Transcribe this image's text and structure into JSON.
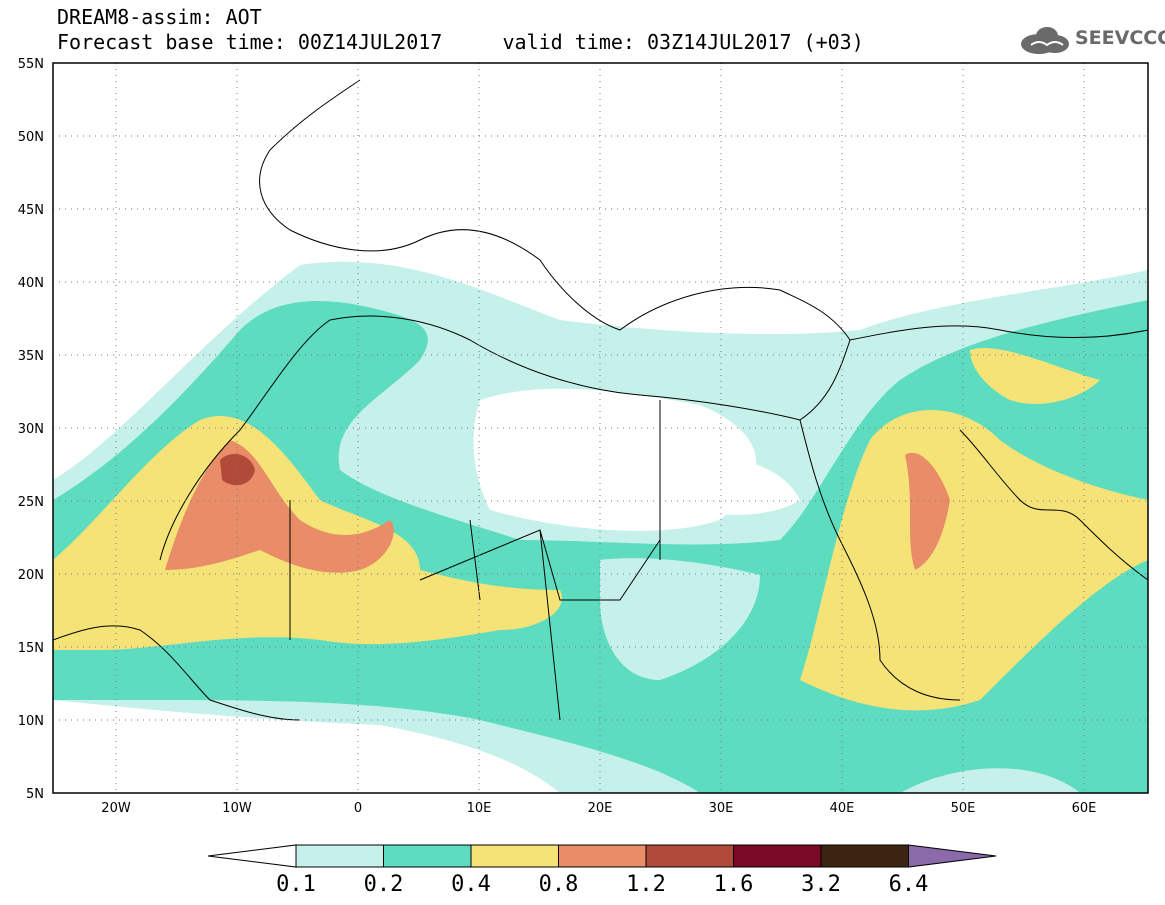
{
  "header": {
    "title_line1": "DREAM8-assim: AOT",
    "title_line2": "Forecast base time: 00Z14JUL2017     valid time: 03Z14JUL2017 (+03)"
  },
  "logo": {
    "text": "SEEVCCC",
    "icon": "cloud-icon"
  },
  "map": {
    "lon_range": [
      -25,
      65
    ],
    "lat_range": [
      5,
      55
    ],
    "grid": true,
    "lat_ticks": [
      "5N",
      "10N",
      "15N",
      "20N",
      "25N",
      "30N",
      "35N",
      "40N",
      "45N",
      "50N",
      "55N"
    ],
    "lon_ticks": [
      "20W",
      "10W",
      "0",
      "10E",
      "20E",
      "30E",
      "40E",
      "50E",
      "60E"
    ]
  },
  "colorbar": {
    "labels": [
      "0.1",
      "0.2",
      "0.4",
      "0.8",
      "1.2",
      "1.6",
      "3.2",
      "6.4"
    ],
    "colors": [
      "#ffffff",
      "#c5f1ea",
      "#5ddcc0",
      "#f5e378",
      "#e88d68",
      "#b24a3a",
      "#7a0a26",
      "#3b2412",
      "#8a6aa8"
    ]
  }
}
